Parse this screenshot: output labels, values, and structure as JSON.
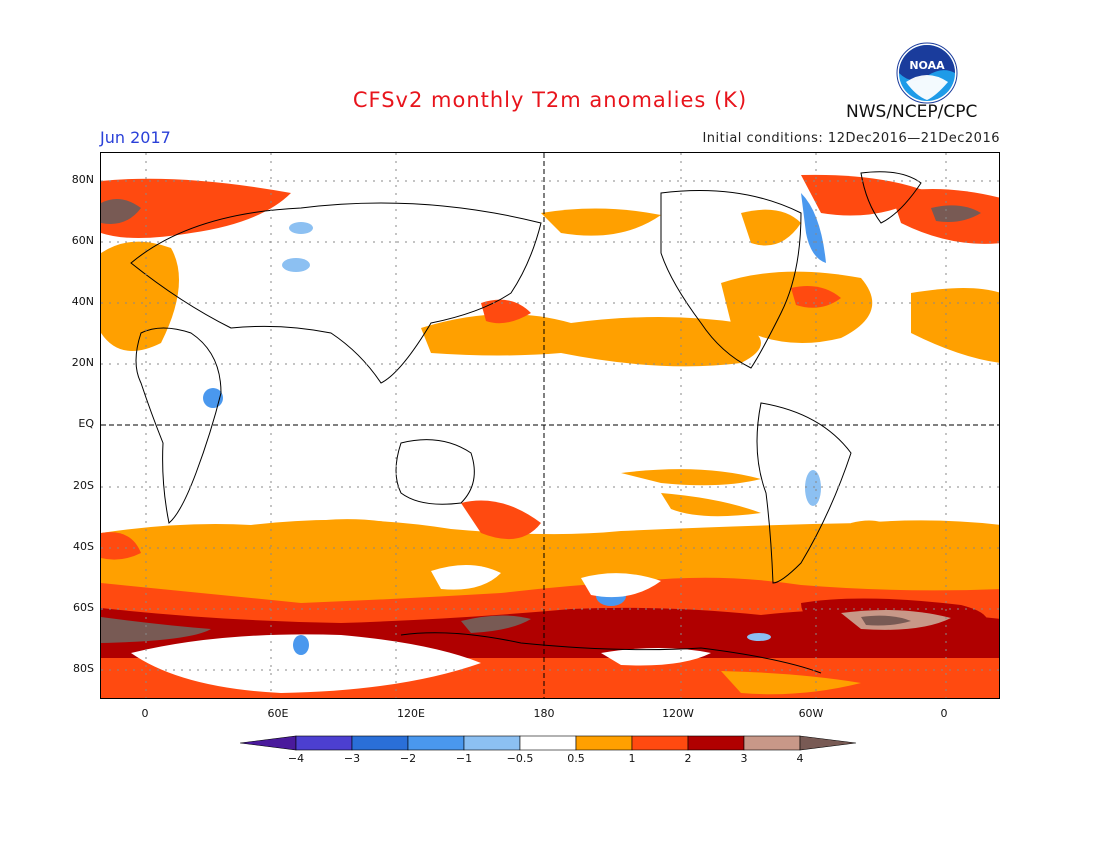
{
  "title": "CFSv2 monthly T2m anomalies (K)",
  "month_label": "Jun 2017",
  "initial_conditions": "Initial conditions: 12Dec2016—21Dec2016",
  "agency": "NWS/NCEP/CPC",
  "logo_text": "NOAA",
  "lat_labels": [
    "80N",
    "60N",
    "40N",
    "20N",
    "EQ",
    "20S",
    "40S",
    "60S",
    "80S"
  ],
  "lon_labels": [
    "0",
    "60E",
    "120E",
    "180",
    "120W",
    "60W",
    "0"
  ],
  "colorbar": {
    "labels": [
      "−4",
      "−3",
      "−2",
      "−1",
      "−0.5",
      "0.5",
      "1",
      "2",
      "3",
      "4"
    ],
    "colors": [
      "#4a1a9c",
      "#4c3fd0",
      "#2a6fd8",
      "#4a98ee",
      "#8cc0f2",
      "#ffffff",
      "#ffa000",
      "#ff4a10",
      "#b00000",
      "#c89888",
      "#785a54"
    ]
  },
  "map_style": {
    "land_outline": "#000000",
    "grid": "dotted-gray",
    "reference_lines": "dashed-black (equator, dateline)"
  }
}
